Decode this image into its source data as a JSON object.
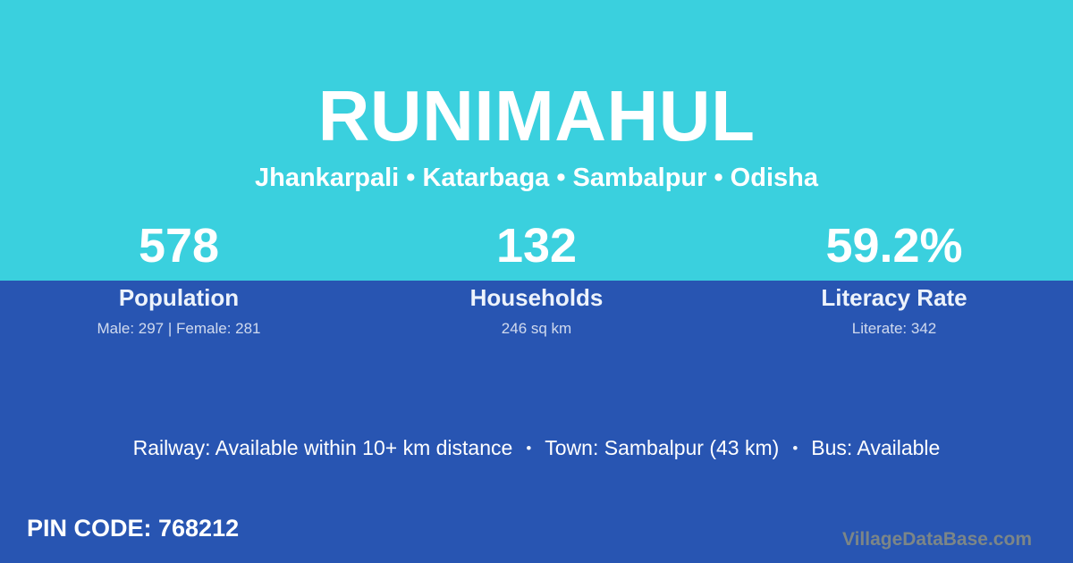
{
  "page": {
    "title": "RUNIMAHUL",
    "subtitle": "Jhankarpali • Katarbaga • Sambalpur • Odisha",
    "stats": [
      {
        "value": "578",
        "label": "Population",
        "detail": "Male: 297 | Female: 281"
      },
      {
        "value": "132",
        "label": "Households",
        "detail": "246 sq km"
      },
      {
        "value": "59.2%",
        "label": "Literacy Rate",
        "detail": "Literate: 342"
      }
    ],
    "info_line": {
      "separator": "•",
      "segments": [
        "Railway: Available within 10+ km distance",
        "Town: Sambalpur (43 km)",
        "Bus: Available"
      ]
    },
    "footer": {
      "pin_code": "PIN CODE: 768212",
      "watermark": "VillageDataBase.com"
    },
    "colors": {
      "top_background": "#3AD0DE",
      "bottom_background": "#2855B2",
      "text": "#FFFFFF",
      "watermark_text": "#7C8687"
    }
  }
}
